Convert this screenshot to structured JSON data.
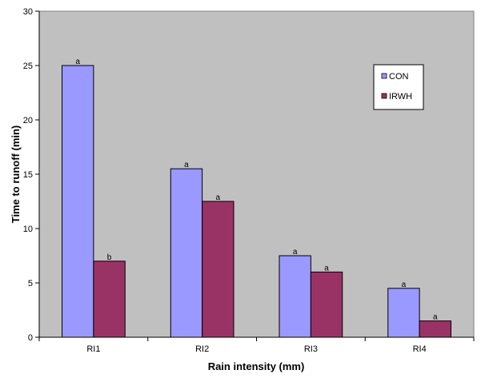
{
  "chart_data": {
    "type": "bar",
    "title": "",
    "xlabel": "Rain  intensity (mm)",
    "ylabel": "Time to runoff (min)",
    "categories": [
      "RI1",
      "RI2",
      "RI3",
      "RI4"
    ],
    "ylim": [
      0,
      30
    ],
    "yticks": [
      0,
      5,
      10,
      15,
      20,
      25,
      30
    ],
    "grid": false,
    "legend_position": "top-right (inside plot)",
    "series": [
      {
        "name": "CON",
        "color": "#9999ff",
        "values": [
          25,
          15.5,
          7.5,
          4.5
        ],
        "labels": [
          "a",
          "a",
          "a",
          "a"
        ]
      },
      {
        "name": "IRWH",
        "color": "#993366",
        "values": [
          7,
          12.5,
          6,
          1.5
        ],
        "labels": [
          "b",
          "a",
          "a",
          "a"
        ]
      }
    ],
    "plot_background": "#c0c0c0"
  }
}
